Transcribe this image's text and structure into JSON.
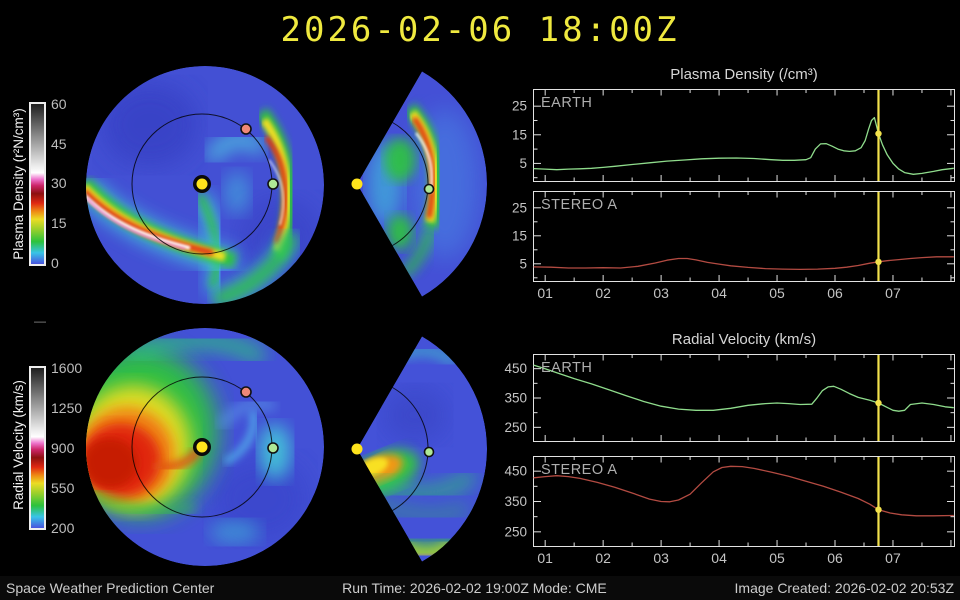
{
  "title": "2026-02-06 18:00Z",
  "colors": {
    "title": "#efe93f",
    "earth_series": "#8fdc8c",
    "stereo_series": "#b34b42",
    "now_line": "#f2e14c",
    "frame": "#e2e2e2",
    "tick_text": "#c4c4c4",
    "sun_marker": "#ffe41c",
    "earth_marker": "#aee896",
    "stereo_a_marker": "#ee8878"
  },
  "colorbars": {
    "density": {
      "label": "Plasma Density (r²N/cm³)",
      "ticks": [
        "60",
        "45",
        "30",
        "15",
        "0"
      ]
    },
    "velocity": {
      "label": "Radial Velocity (km/s)",
      "ticks": [
        "1600",
        "1250",
        "900",
        "550",
        "200"
      ]
    }
  },
  "panels": {
    "density_title": "Plasma Density (/cm³)",
    "velocity_title": "Radial Velocity (km/s)"
  },
  "footer": {
    "left": "Space Weather Prediction Center",
    "center": "Run Time: 2026-02-02 19:00Z  Mode: CME",
    "right": "Image Created: 2026-02-02 20:53Z"
  },
  "misc": {
    "dash": "—"
  },
  "chart_data": [
    {
      "type": "heatmap",
      "title": "Plasma Density polar and meridional maps (WSA-ENLIL)",
      "colorbar_label": "Plasma Density (r²N/cm³)",
      "range": [
        0,
        60
      ],
      "markers": [
        "Sun (center)",
        "Earth (green dot on 1 AU orbit)",
        "STEREO A (red dot on 1 AU orbit)"
      ],
      "note": "CME density front west of Sun and dense front passing Earth"
    },
    {
      "type": "heatmap",
      "title": "Radial Velocity polar and meridional maps (WSA-ENLIL)",
      "colorbar_label": "Radial Velocity (km/s)",
      "range": [
        200,
        1600
      ],
      "markers": [
        "Sun (center)",
        "Earth (green dot on 1 AU orbit)",
        "STEREO A (red dot on 1 AU orbit)"
      ],
      "note": "High-speed stream (red/orange) west of Sun"
    },
    {
      "type": "line",
      "group": "Plasma Density (/cm³)",
      "label": "EARTH",
      "color": "#8fdc8c",
      "xlim": [
        0.79,
        8.07
      ],
      "ylim": [
        -1.5,
        31
      ],
      "yticks": [
        5,
        15,
        25
      ],
      "yminor": [
        0,
        10,
        20,
        30
      ],
      "xticks": [
        1,
        2,
        3,
        4,
        5,
        6,
        7,
        8
      ],
      "xminor": [
        1.5,
        2.5,
        3.5,
        4.5,
        5.5,
        6.5,
        7.5
      ],
      "xtick_labels": null,
      "now": 6.75,
      "now_value": 15.4,
      "x": [
        0.8,
        1.0,
        1.2,
        1.4,
        1.6,
        1.8,
        2.0,
        2.2,
        2.5,
        2.8,
        3.1,
        3.4,
        3.7,
        4.0,
        4.3,
        4.6,
        4.9,
        5.1,
        5.3,
        5.5,
        5.58,
        5.66,
        5.75,
        5.85,
        5.95,
        6.05,
        6.15,
        6.25,
        6.35,
        6.45,
        6.52,
        6.58,
        6.63,
        6.68,
        6.75,
        6.82,
        6.9,
        7.0,
        7.1,
        7.2,
        7.35,
        7.5,
        7.7,
        7.85,
        8.05
      ],
      "y": [
        3.2,
        3.0,
        2.8,
        3.0,
        3.1,
        3.3,
        3.6,
        4.0,
        4.6,
        5.2,
        5.8,
        6.2,
        6.6,
        6.8,
        6.9,
        6.7,
        6.3,
        6.1,
        6.1,
        6.3,
        7.0,
        10.0,
        11.8,
        11.9,
        11.0,
        10.0,
        9.4,
        9.2,
        9.4,
        10.5,
        13.0,
        17.0,
        20.0,
        21.0,
        15.4,
        11.5,
        8.0,
        5.0,
        3.0,
        1.8,
        1.2,
        1.5,
        2.2,
        2.8,
        3.3
      ]
    },
    {
      "type": "line",
      "group": "Plasma Density (/cm³)",
      "label": "STEREO A",
      "color": "#b34b42",
      "xlim": [
        0.79,
        8.07
      ],
      "ylim": [
        -1.5,
        31
      ],
      "yticks": [
        5,
        15,
        25
      ],
      "yminor": [
        0,
        10,
        20,
        30
      ],
      "xticks": [
        1,
        2,
        3,
        4,
        5,
        6,
        7,
        8
      ],
      "xminor": [
        1.5,
        2.5,
        3.5,
        4.5,
        5.5,
        6.5,
        7.5
      ],
      "xtick_labels": [
        "01",
        "02",
        "03",
        "04",
        "05",
        "06",
        "07"
      ],
      "now": 6.75,
      "now_value": 5.7,
      "x": [
        0.8,
        1.1,
        1.4,
        1.7,
        2.0,
        2.3,
        2.6,
        2.9,
        3.1,
        3.3,
        3.45,
        3.6,
        3.8,
        4.0,
        4.2,
        4.5,
        4.8,
        5.1,
        5.4,
        5.7,
        6.0,
        6.2,
        6.4,
        6.6,
        6.75,
        6.9,
        7.1,
        7.3,
        7.5,
        7.75,
        8.05
      ],
      "y": [
        3.9,
        3.8,
        3.5,
        3.5,
        3.6,
        3.5,
        4.1,
        5.3,
        6.3,
        6.9,
        6.9,
        6.4,
        5.5,
        4.9,
        4.3,
        3.7,
        3.3,
        3.1,
        3.0,
        3.1,
        3.4,
        3.8,
        4.4,
        5.2,
        5.7,
        6.1,
        6.5,
        6.9,
        7.2,
        7.5,
        7.5
      ]
    },
    {
      "type": "line",
      "group": "Radial Velocity (km/s)",
      "label": "EARTH",
      "color": "#8fdc8c",
      "xlim": [
        0.79,
        8.07
      ],
      "ylim": [
        200,
        500
      ],
      "yticks": [
        250,
        350,
        450
      ],
      "yminor": [
        300,
        400
      ],
      "xticks": [
        1,
        2,
        3,
        4,
        5,
        6,
        7,
        8
      ],
      "xminor": [
        1.5,
        2.5,
        3.5,
        4.5,
        5.5,
        6.5,
        7.5
      ],
      "xtick_labels": null,
      "now": 6.75,
      "now_value": 333,
      "x": [
        0.8,
        1.0,
        1.2,
        1.5,
        1.8,
        2.1,
        2.4,
        2.7,
        3.0,
        3.3,
        3.6,
        3.9,
        4.2,
        4.5,
        4.8,
        5.0,
        5.2,
        5.4,
        5.6,
        5.68,
        5.78,
        5.88,
        5.98,
        6.1,
        6.25,
        6.4,
        6.6,
        6.75,
        6.9,
        7.0,
        7.1,
        7.2,
        7.3,
        7.5,
        7.7,
        7.9,
        8.05
      ],
      "y": [
        462,
        450,
        436,
        416,
        398,
        378,
        358,
        338,
        322,
        312,
        308,
        308,
        315,
        325,
        331,
        333,
        331,
        328,
        329,
        348,
        375,
        388,
        390,
        380,
        365,
        352,
        342,
        333,
        318,
        308,
        305,
        308,
        328,
        333,
        328,
        320,
        317
      ]
    },
    {
      "type": "line",
      "group": "Radial Velocity (km/s)",
      "label": "STEREO A",
      "color": "#b34b42",
      "xlim": [
        0.79,
        8.07
      ],
      "ylim": [
        200,
        500
      ],
      "yticks": [
        250,
        350,
        450
      ],
      "yminor": [
        300,
        400
      ],
      "xticks": [
        1,
        2,
        3,
        4,
        5,
        6,
        7,
        8
      ],
      "xminor": [
        1.5,
        2.5,
        3.5,
        4.5,
        5.5,
        6.5,
        7.5
      ],
      "xtick_labels": [
        "01",
        "02",
        "03",
        "04",
        "05",
        "06",
        "07"
      ],
      "now": 6.75,
      "now_value": 323,
      "x": [
        0.8,
        1.0,
        1.2,
        1.4,
        1.6,
        1.9,
        2.2,
        2.5,
        2.8,
        3.0,
        3.15,
        3.3,
        3.5,
        3.7,
        3.9,
        4.05,
        4.2,
        4.4,
        4.6,
        4.9,
        5.2,
        5.5,
        5.8,
        6.1,
        6.4,
        6.6,
        6.75,
        6.95,
        7.15,
        7.4,
        7.7,
        8.05
      ],
      "y": [
        428,
        432,
        435,
        432,
        426,
        413,
        397,
        378,
        358,
        350,
        349,
        355,
        374,
        412,
        448,
        462,
        466,
        465,
        459,
        447,
        433,
        417,
        400,
        381,
        360,
        341,
        323,
        312,
        306,
        303,
        303,
        304
      ]
    }
  ]
}
